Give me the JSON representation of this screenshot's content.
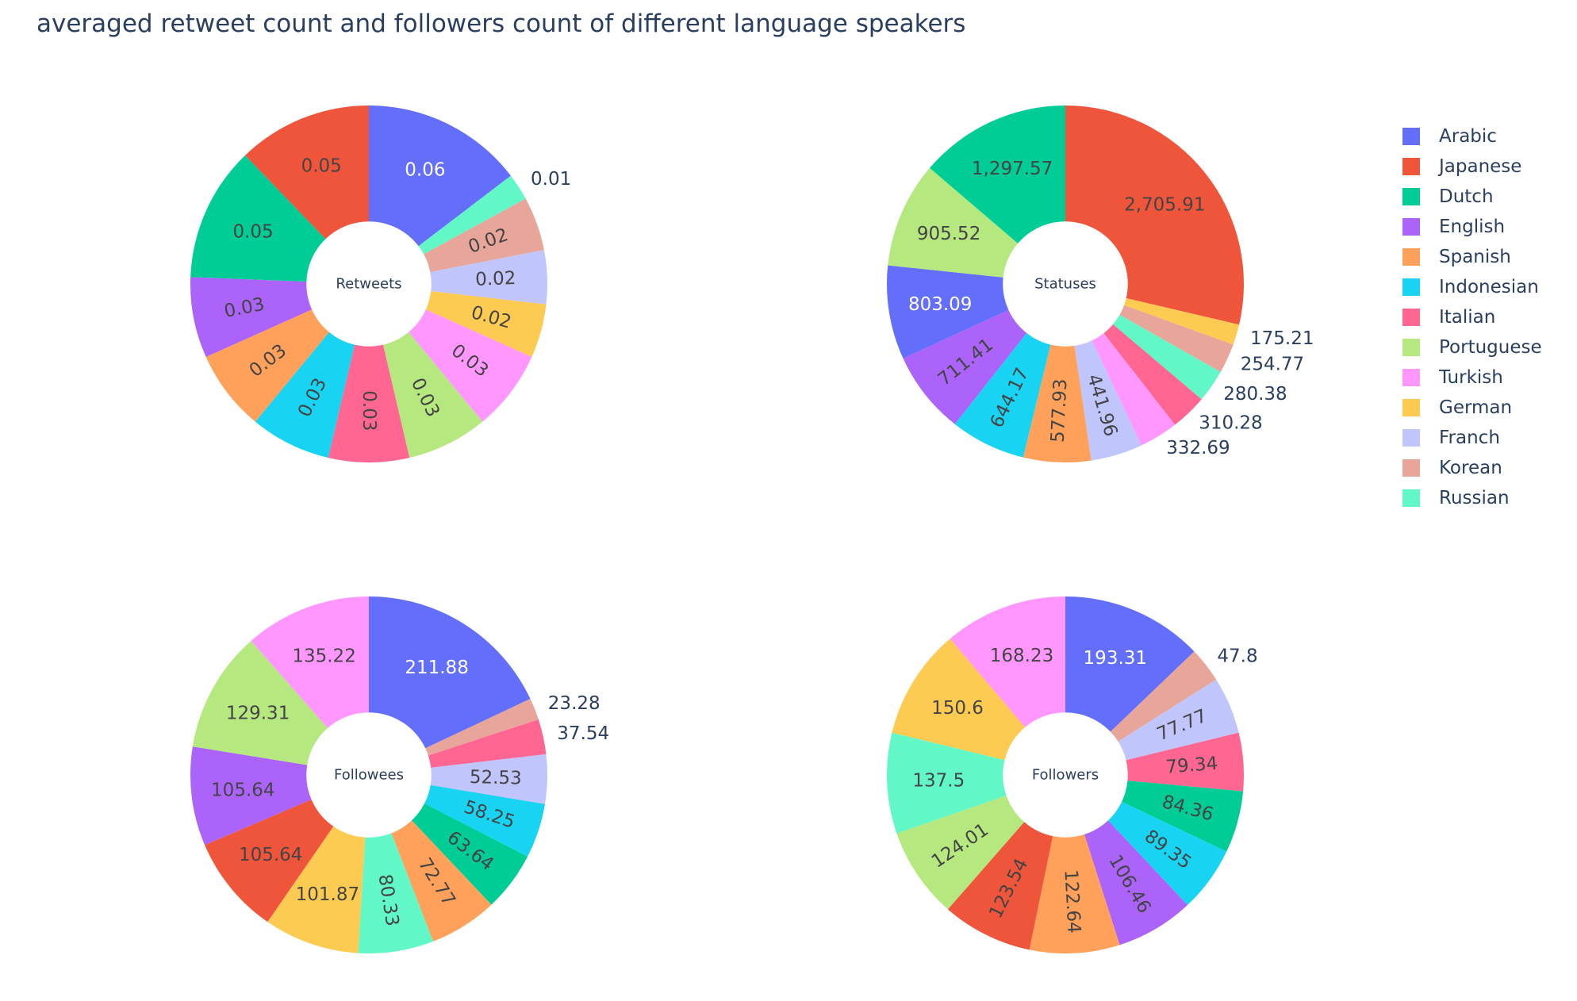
{
  "chart_data": {
    "title": "averaged retweet count and followers count of different language speakers",
    "legend_position": "right",
    "languages": [
      "Arabic",
      "Japanese",
      "Dutch",
      "English",
      "Spanish",
      "Indonesian",
      "Italian",
      "Portuguese",
      "Turkish",
      "German",
      "Franch",
      "Korean",
      "Russian"
    ],
    "colors": {
      "Arabic": "#636efa",
      "Japanese": "#EF553B",
      "Dutch": "#00cc96",
      "English": "#ab63fa",
      "Spanish": "#FFA15A",
      "Indonesian": "#19d3f3",
      "Italian": "#FF6692",
      "Portuguese": "#B6E880",
      "Turkish": "#FF97FF",
      "German": "#FECB52",
      "Franch": "#c0c5fb",
      "Korean": "#e8a59a",
      "Russian": "#62f7c7"
    },
    "charts": [
      {
        "type": "pie",
        "hole": 0.35,
        "center_label": "Retweets",
        "order": [
          "Arabic",
          "Russian",
          "Korean",
          "Franch",
          "German",
          "Turkish",
          "Portuguese",
          "Italian",
          "Indonesian",
          "Spanish",
          "English",
          "Dutch",
          "Japanese"
        ],
        "values": {
          "Arabic": 0.06,
          "Russian": 0.01,
          "Korean": 0.02,
          "Franch": 0.02,
          "German": 0.02,
          "Turkish": 0.03,
          "Portuguese": 0.03,
          "Italian": 0.03,
          "Indonesian": 0.03,
          "Spanish": 0.03,
          "English": 0.03,
          "Dutch": 0.05,
          "Japanese": 0.05
        },
        "labels": {
          "Arabic": "0.06",
          "Russian": "0.01",
          "Korean": "0.02",
          "Franch": "0.02",
          "German": "0.02",
          "Turkish": "0.03",
          "Portuguese": "0.03",
          "Italian": "0.03",
          "Indonesian": "0.03",
          "Spanish": "0.03",
          "English": "0.03",
          "Dutch": "0.05",
          "Japanese": "0.05"
        }
      },
      {
        "type": "pie",
        "hole": 0.35,
        "center_label": "Statuses",
        "order": [
          "Japanese",
          "German",
          "Korean",
          "Russian",
          "Italian",
          "Turkish",
          "Franch",
          "Spanish",
          "Indonesian",
          "English",
          "Arabic",
          "Portuguese",
          "Dutch"
        ],
        "values": {
          "Japanese": 2705.91,
          "German": 175.21,
          "Korean": 254.77,
          "Russian": 280.38,
          "Italian": 310.28,
          "Turkish": 332.69,
          "Franch": 441.96,
          "Spanish": 577.93,
          "Indonesian": 644.17,
          "English": 711.41,
          "Arabic": 803.09,
          "Portuguese": 905.52,
          "Dutch": 1297.57
        },
        "labels": {
          "Japanese": "2,705.91",
          "German": "175.21",
          "Korean": "254.77",
          "Russian": "280.38",
          "Italian": "310.28",
          "Turkish": "332.69",
          "Franch": "441.96",
          "Spanish": "577.93",
          "Indonesian": "644.17",
          "English": "711.41",
          "Arabic": "803.09",
          "Portuguese": "905.52",
          "Dutch": "1,297.57"
        }
      },
      {
        "type": "pie",
        "hole": 0.35,
        "center_label": "Followees",
        "order": [
          "Arabic",
          "Korean",
          "Italian",
          "Franch",
          "Indonesian",
          "Dutch",
          "Spanish",
          "Russian",
          "German",
          "Japanese",
          "English",
          "Portuguese",
          "Turkish"
        ],
        "values": {
          "Arabic": 211.88,
          "Korean": 23.28,
          "Italian": 37.54,
          "Franch": 52.53,
          "Indonesian": 58.25,
          "Dutch": 63.64,
          "Spanish": 72.77,
          "Russian": 80.33,
          "German": 101.87,
          "Japanese": 105.64,
          "English": 105.64,
          "Portuguese": 129.31,
          "Turkish": 135.22
        },
        "labels": {
          "Arabic": "211.88",
          "Korean": "23.28",
          "Italian": "37.54",
          "Franch": "52.53",
          "Indonesian": "58.25",
          "Dutch": "63.64",
          "Spanish": "72.77",
          "Russian": "80.33",
          "German": "101.87",
          "Japanese": "105.64",
          "English": "105.64",
          "Portuguese": "129.31",
          "Turkish": "135.22"
        }
      },
      {
        "type": "pie",
        "hole": 0.35,
        "center_label": "Followers",
        "order": [
          "Arabic",
          "Korean",
          "Franch",
          "Italian",
          "Dutch",
          "Indonesian",
          "English",
          "Spanish",
          "Japanese",
          "Portuguese",
          "Russian",
          "German",
          "Turkish"
        ],
        "values": {
          "Arabic": 193.31,
          "Korean": 47.8,
          "Franch": 77.77,
          "Italian": 79.34,
          "Dutch": 84.36,
          "Indonesian": 89.35,
          "English": 106.46,
          "Spanish": 122.64,
          "Japanese": 123.54,
          "Portuguese": 124.01,
          "Russian": 137.5,
          "German": 150.6,
          "Turkish": 168.23
        },
        "labels": {
          "Arabic": "193.31",
          "Korean": "47.8",
          "Franch": "77.77",
          "Italian": "79.34",
          "Dutch": "84.36",
          "Indonesian": "89.35",
          "English": "106.46",
          "Spanish": "122.64",
          "Japanese": "123.54",
          "Portuguese": "124.01",
          "Russian": "137.5",
          "German": "150.6",
          "Turkish": "168.23"
        }
      }
    ]
  }
}
